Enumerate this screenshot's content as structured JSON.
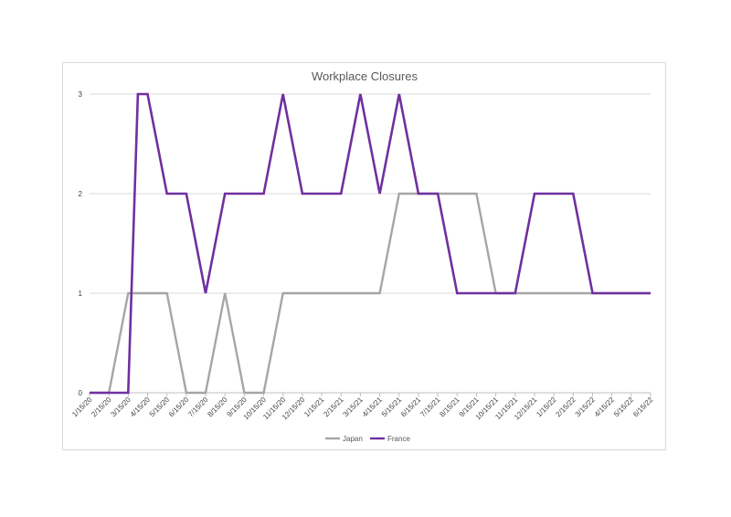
{
  "chart_data": {
    "type": "line",
    "title": "Workplace Closures",
    "xlabel": "",
    "ylabel": "",
    "ylim": [
      0,
      3
    ],
    "yticks": [
      0,
      1,
      2,
      3
    ],
    "grid": true,
    "legend_position": "bottom",
    "x": [
      "1/15/20",
      "2/15/20",
      "3/15/20",
      "4/15/20",
      "5/15/20",
      "6/15/20",
      "7/15/20",
      "8/15/20",
      "9/15/20",
      "10/15/20",
      "11/15/20",
      "12/15/20",
      "1/15/21",
      "2/15/21",
      "3/15/21",
      "4/15/21",
      "5/15/21",
      "6/15/21",
      "7/15/21",
      "8/15/21",
      "9/15/21",
      "10/15/21",
      "11/15/21",
      "12/15/21",
      "1/15/22",
      "2/15/22",
      "3/15/22",
      "4/15/22",
      "5/15/22",
      "6/15/22"
    ],
    "series": [
      {
        "name": "Japan",
        "color": "#a6a6a6",
        "points": [
          [
            0,
            0
          ],
          [
            1,
            0
          ],
          [
            2,
            1
          ],
          [
            3,
            1
          ],
          [
            4,
            1
          ],
          [
            5,
            0
          ],
          [
            6,
            0
          ],
          [
            7,
            1
          ],
          [
            8,
            0
          ],
          [
            9,
            0
          ],
          [
            10,
            1
          ],
          [
            11,
            1
          ],
          [
            12,
            1
          ],
          [
            13,
            1
          ],
          [
            14,
            1
          ],
          [
            15,
            1
          ],
          [
            16,
            2
          ],
          [
            17,
            2
          ],
          [
            18,
            2
          ],
          [
            19,
            2
          ],
          [
            20,
            2
          ],
          [
            21,
            1
          ],
          [
            22,
            1
          ],
          [
            23,
            1
          ],
          [
            24,
            1
          ],
          [
            25,
            1
          ],
          [
            26,
            1
          ],
          [
            27,
            1
          ],
          [
            28,
            1
          ],
          [
            29,
            1
          ]
        ]
      },
      {
        "name": "France",
        "color": "#7030a0",
        "points": [
          [
            0,
            0
          ],
          [
            1,
            0
          ],
          [
            2,
            0
          ],
          [
            2.5,
            3
          ],
          [
            3,
            3
          ],
          [
            4,
            2
          ],
          [
            5,
            2
          ],
          [
            6,
            1
          ],
          [
            7,
            2
          ],
          [
            8,
            2
          ],
          [
            9,
            2
          ],
          [
            10,
            3
          ],
          [
            11,
            2
          ],
          [
            12,
            2
          ],
          [
            13,
            2
          ],
          [
            14,
            3
          ],
          [
            15,
            2
          ],
          [
            16,
            3
          ],
          [
            17,
            2
          ],
          [
            18,
            2
          ],
          [
            19,
            1
          ],
          [
            20,
            1
          ],
          [
            21,
            1
          ],
          [
            22,
            1
          ],
          [
            23,
            2
          ],
          [
            24,
            2
          ],
          [
            25,
            2
          ],
          [
            26,
            1
          ],
          [
            27,
            1
          ],
          [
            28,
            1
          ],
          [
            29,
            1
          ]
        ]
      }
    ]
  }
}
